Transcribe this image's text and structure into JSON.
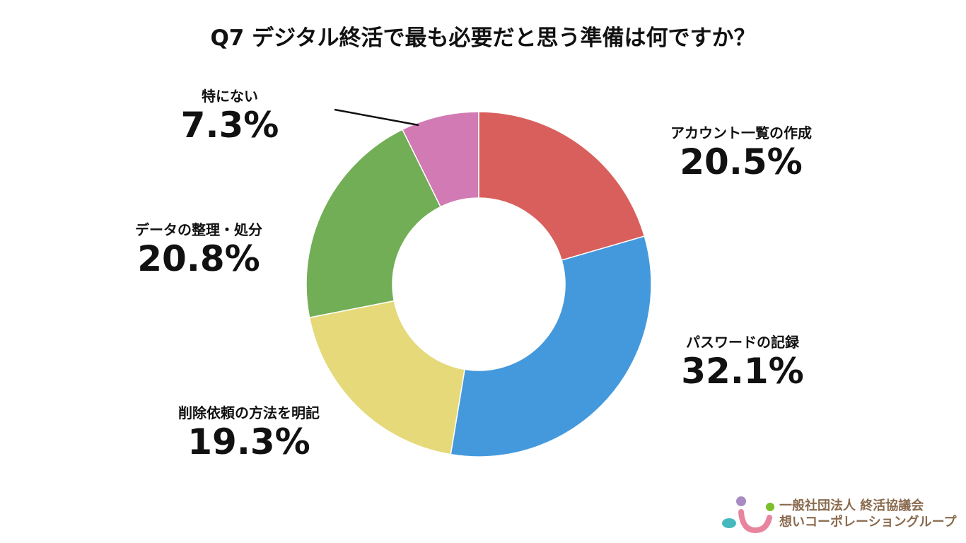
{
  "chart_data": {
    "type": "pie",
    "donut": true,
    "title": "Q7 デジタル終活で最も必要だと思う準備は何ですか？",
    "slices": [
      {
        "label": "アカウント一覧の作成",
        "value": 20.5,
        "display": "20.5%",
        "color": "#d95f5c"
      },
      {
        "label": "パスワードの記録",
        "value": 32.1,
        "display": "32.1%",
        "color": "#4499dd"
      },
      {
        "label": "削除依頼の方法を明記",
        "value": 19.3,
        "display": "19.3%",
        "color": "#e5d97a"
      },
      {
        "label": "データの整理・処分",
        "value": 20.8,
        "display": "20.8%",
        "color": "#72ae55"
      },
      {
        "label": "特にない",
        "value": 7.3,
        "display": "7.3%",
        "color": "#d27ab4"
      }
    ],
    "start": "top",
    "direction": "clockwise",
    "legend": "none"
  },
  "logo": {
    "line1": "一般社団法人 終活協議会",
    "line2": "想いコーポレーショングループ"
  }
}
